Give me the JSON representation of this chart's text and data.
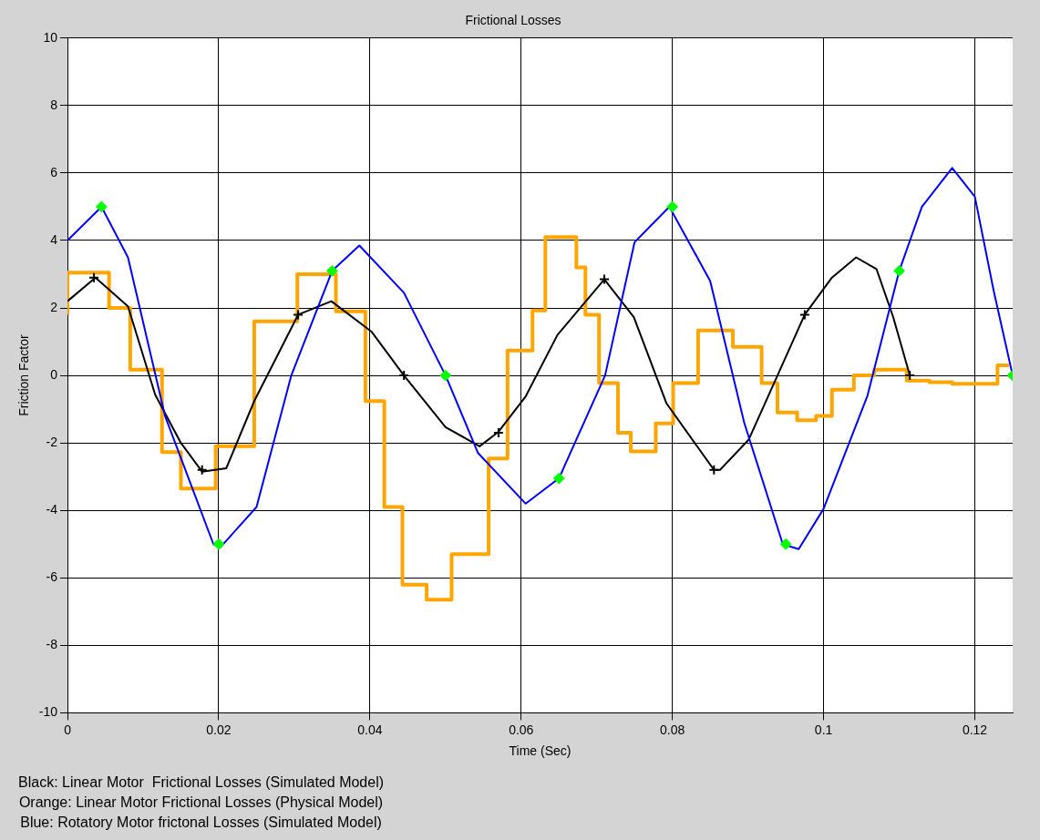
{
  "chart_data": {
    "type": "line",
    "title": "Frictional Losses",
    "xlabel": "Time (Sec)",
    "ylabel": "Friction Factor",
    "xlim": [
      0,
      0.125
    ],
    "xticks": [
      0,
      0.02,
      0.04,
      0.06,
      0.08,
      0.1,
      0.12
    ],
    "ylim": [
      -10,
      10
    ],
    "yticks": [
      -10,
      -8,
      -6,
      -4,
      -2,
      0,
      2,
      4,
      6,
      8,
      10
    ],
    "grid": true,
    "legend": false,
    "line_style": "solid",
    "series": [
      {
        "type": "line",
        "color": "#0000ff",
        "marker": "none",
        "x": [
          0,
          0.0045,
          0.008,
          0.0129,
          0.0193,
          0.0202,
          0.025,
          0.0296,
          0.035,
          0.0386,
          0.0445,
          0.05,
          0.0543,
          0.0606,
          0.065,
          0.0711,
          0.075,
          0.0796,
          0.085,
          0.0895,
          0.0946,
          0.0967,
          0.1,
          0.1058,
          0.11,
          0.113,
          0.117,
          0.12,
          0.1225,
          0.125
        ],
        "values": [
          4.0,
          5.0,
          3.5,
          -1.2,
          -5.0,
          -5.1,
          -3.9,
          0,
          3.1,
          3.85,
          2.45,
          0,
          -2.3,
          -3.8,
          -3.05,
          0,
          3.95,
          5.0,
          2.8,
          -1.4,
          -5.0,
          -5.15,
          -3.95,
          -0.6,
          3.1,
          5.0,
          6.15,
          5.3,
          2.5,
          0
        ]
      },
      {
        "type": "line",
        "color": "#000000",
        "marker": "none",
        "x": [
          0,
          0.0037,
          0.008,
          0.0116,
          0.015,
          0.0178,
          0.021,
          0.0247,
          0.0305,
          0.0349,
          0.0402,
          0.0445,
          0.05,
          0.0545,
          0.057,
          0.0606,
          0.0648,
          0.071,
          0.0749,
          0.0792,
          0.0855,
          0.0863,
          0.0901,
          0.0939,
          0.0975,
          0.1011,
          0.1043,
          0.107,
          0.1092,
          0.1114
        ],
        "values": [
          2.2,
          2.9,
          2.05,
          -0.57,
          -2.0,
          -2.85,
          -2.75,
          -0.76,
          1.8,
          2.2,
          1.3,
          0,
          -1.53,
          -2.1,
          -1.67,
          -0.62,
          1.2,
          2.85,
          1.73,
          -0.82,
          -2.8,
          -2.8,
          -1.9,
          0,
          1.8,
          2.9,
          3.5,
          3.15,
          1.73,
          0
        ]
      },
      {
        "type": "step",
        "color": "#ffa500",
        "marker": "none",
        "x": [
          0,
          0.0055,
          0.0083,
          0.0125,
          0.015,
          0.0196,
          0.0247,
          0.0304,
          0.0355,
          0.0394,
          0.0419,
          0.0443,
          0.0475,
          0.0508,
          0.0557,
          0.0582,
          0.0615,
          0.0632,
          0.0673,
          0.0685,
          0.0703,
          0.0728,
          0.0745,
          0.0778,
          0.0801,
          0.0834,
          0.088,
          0.0918,
          0.0939,
          0.0965,
          0.099,
          0.1011,
          0.104,
          0.1067,
          0.111,
          0.114,
          0.117,
          0.12,
          0.123,
          0.1245
        ],
        "values": [
          1.8,
          3.05,
          2.0,
          0.17,
          -2.27,
          -3.35,
          -2.1,
          1.6,
          3.0,
          1.9,
          -0.76,
          -3.9,
          -6.2,
          -6.65,
          -5.3,
          -2.46,
          0.74,
          1.93,
          4.1,
          3.2,
          1.8,
          -0.23,
          -1.7,
          -2.25,
          -1.42,
          -0.23,
          1.33,
          0.85,
          -0.23,
          -1.1,
          -1.33,
          -1.2,
          -0.42,
          0,
          0.17,
          -0.15,
          -0.2,
          -0.25,
          -0.25,
          0.3
        ]
      },
      {
        "type": "scatter",
        "color": "#00ff00",
        "marker": "diamond",
        "x": [
          0.0045,
          0.02,
          0.035,
          0.05,
          0.065,
          0.08,
          0.095,
          0.11,
          0.125
        ],
        "values": [
          5.0,
          -5.0,
          3.1,
          0,
          -3.05,
          5.0,
          -5.0,
          3.1,
          0
        ]
      },
      {
        "type": "scatter",
        "color": "#000000",
        "marker": "cross",
        "x": [
          0.0035,
          0.0178,
          0.0305,
          0.0445,
          0.057,
          0.071,
          0.0855,
          0.0975,
          0.1114
        ],
        "values": [
          2.9,
          -2.8,
          1.8,
          0,
          -1.7,
          2.85,
          -2.8,
          1.8,
          0
        ]
      }
    ],
    "annotations": [
      "Black: Linear Motor  Frictional Losses (Simulated Model)",
      "Orange: Linear Motor Frictional Losses (Physical Model)",
      "Blue: Rotatory Motor frictonal Losses (Simulated Model)"
    ]
  }
}
